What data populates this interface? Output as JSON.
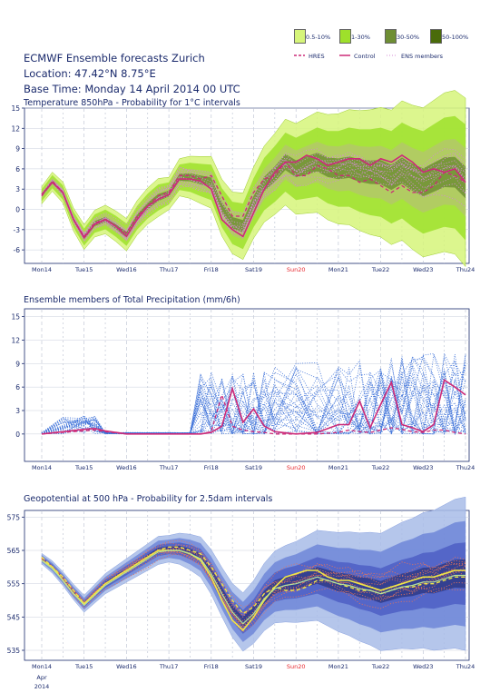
{
  "header": {
    "title": "ECMWF Ensemble forecasts Zurich",
    "location": "Location:  47.42°N 8.75°E",
    "base_time": "Base Time: Monday 14 April 2014 00 UTC"
  },
  "legend": {
    "prob": [
      {
        "label": "0.5-10%",
        "color": "#d6f57a"
      },
      {
        "label": "1-30%",
        "color": "#9ee02b"
      },
      {
        "label": "30-50%",
        "color": "#6e8e34"
      },
      {
        "label": "50-100%",
        "color": "#4a6b0a"
      }
    ],
    "lines": [
      {
        "label": "HRES",
        "color": "#cc2a78"
      },
      {
        "label": "Control",
        "color": "#cc2a78"
      },
      {
        "label": "ENS members",
        "color": "#d58bd6"
      }
    ]
  },
  "days": [
    "Mon14",
    "Tue15",
    "Wed16",
    "Thu17",
    "Fri18",
    "Sat19",
    "Sun20",
    "Mon21",
    "Tue22",
    "Wed23",
    "Thu24"
  ],
  "highlight_day": "Sun20",
  "date_note": [
    "Apr",
    "2014"
  ],
  "colors": {
    "text": "#1a2a6c",
    "highlight": "#e8282e"
  },
  "chart_data": [
    {
      "type": "area",
      "title": "Temperature 850hPa - Probability for 1°C intervals",
      "ylim": [
        -8,
        15
      ],
      "yticks": [
        -6,
        -3,
        0,
        3,
        6,
        9,
        12,
        15
      ],
      "x_unit": "days since Mon14 00 UTC",
      "series": [
        {
          "name": "HRES",
          "x": [
            0,
            0.25,
            0.5,
            0.75,
            1,
            1.25,
            1.5,
            1.75,
            2,
            2.25,
            2.5,
            2.75,
            3,
            3.25,
            3.5,
            3.75,
            4,
            4.25,
            4.5,
            4.75,
            5,
            5.25,
            5.5,
            5.75,
            6,
            6.25,
            6.5,
            6.75,
            7,
            7.25,
            7.5,
            7.75,
            8,
            8.25,
            8.5,
            8.75,
            9,
            9.25,
            9.5,
            9.75,
            10
          ],
          "values": [
            2,
            4.2,
            2.5,
            -1.5,
            -4,
            -2,
            -1.5,
            -2.5,
            -3.5,
            -1,
            0.5,
            2,
            2.5,
            5,
            5,
            4.5,
            5,
            2,
            -1,
            -1,
            2.5,
            4.5,
            5,
            7,
            5,
            5,
            6.5,
            6,
            5,
            5,
            4,
            4.5,
            3.5,
            2.5,
            3.5,
            2.5,
            2.5,
            3.5,
            5.5,
            5,
            4
          ]
        },
        {
          "name": "Control",
          "x": [
            0,
            0.25,
            0.5,
            0.75,
            1,
            1.25,
            1.5,
            1.75,
            2,
            2.25,
            2.5,
            2.75,
            3,
            3.25,
            3.5,
            3.75,
            4,
            4.25,
            4.5,
            4.75,
            5,
            5.25,
            5.5,
            5.75,
            6,
            6.25,
            6.5,
            6.75,
            7,
            7.25,
            7.5,
            7.75,
            8,
            8.25,
            8.5,
            8.75,
            9,
            9.25,
            9.5,
            9.75,
            10
          ],
          "values": [
            2.2,
            4,
            2.5,
            -1.5,
            -4.2,
            -2.2,
            -1.5,
            -2.5,
            -4,
            -1.5,
            0.5,
            1.5,
            2.2,
            4.5,
            4.5,
            4.2,
            3,
            -1.5,
            -3,
            -4,
            -0.5,
            3,
            5.5,
            7,
            7,
            8,
            7.5,
            6.5,
            7,
            7.5,
            7.5,
            6.5,
            7.5,
            7,
            8,
            7,
            5.5,
            6,
            5.5,
            6,
            4
          ]
        }
      ]
    },
    {
      "type": "line",
      "title": "Ensemble members of Total Precipitation (mm/6h)",
      "ylim": [
        -3.5,
        16
      ],
      "yticks": [
        0,
        3,
        6,
        9,
        12,
        15
      ],
      "x_unit": "days since Mon14 00 UTC",
      "series": [
        {
          "name": "HRES",
          "x": [
            0,
            0.5,
            1,
            1.25,
            1.5,
            2,
            3,
            3.5,
            3.75,
            4,
            4.25,
            4.5,
            4.75,
            5,
            5.25,
            5.5,
            6,
            6.5,
            7,
            7.25,
            7.5,
            7.75,
            8,
            8.25,
            8.5,
            8.75,
            9,
            9.25,
            9.5,
            9.75,
            10
          ],
          "values": [
            0,
            0.2,
            0.4,
            0.5,
            0.3,
            0,
            0,
            0,
            0,
            0.3,
            5,
            1,
            0.5,
            0.3,
            0.2,
            0,
            0,
            0,
            0.2,
            0.5,
            0.3,
            0.2,
            0.5,
            0.8,
            0.6,
            0.3,
            0.2,
            0.5,
            0.5,
            0.2,
            0
          ]
        },
        {
          "name": "Control",
          "x": [
            0,
            0.5,
            1,
            1.25,
            1.5,
            2,
            3,
            3.5,
            3.75,
            4,
            4.25,
            4.5,
            4.75,
            5,
            5.25,
            5.5,
            6,
            6.5,
            7,
            7.25,
            7.5,
            7.75,
            8,
            8.25,
            8.5,
            8.75,
            9,
            9.25,
            9.5,
            9.75,
            10
          ],
          "values": [
            0,
            0.3,
            0.6,
            0.7,
            0.4,
            0,
            0,
            0,
            0,
            0.2,
            1,
            5.8,
            1.5,
            3.2,
            1,
            0.3,
            0,
            0.2,
            1.2,
            1.2,
            4.2,
            0.8,
            3.8,
            6.6,
            1.2,
            0.8,
            0.3,
            1.2,
            6.9,
            6,
            5
          ]
        }
      ]
    },
    {
      "type": "area",
      "title": "Geopotential at 500 hPa - Probability for 2.5dam intervals",
      "ylim": [
        532,
        577
      ],
      "yticks": [
        535,
        545,
        555,
        565,
        575
      ],
      "x_unit": "days since Mon14 00 UTC",
      "series": [
        {
          "name": "HRES",
          "x": [
            0,
            0.25,
            0.5,
            0.75,
            1,
            1.25,
            1.5,
            1.75,
            2,
            2.25,
            2.5,
            2.75,
            3,
            3.25,
            3.5,
            3.75,
            4,
            4.25,
            4.5,
            4.75,
            5,
            5.25,
            5.5,
            5.75,
            6,
            6.25,
            6.5,
            6.75,
            7,
            7.25,
            7.5,
            7.75,
            8,
            8.25,
            8.5,
            8.75,
            9,
            9.25,
            9.5,
            9.75,
            10
          ],
          "values": [
            563,
            560,
            557,
            553,
            549,
            552,
            555,
            557,
            559,
            561,
            563,
            565,
            566,
            566,
            565,
            564,
            560,
            555,
            550,
            546,
            548,
            552,
            554,
            553,
            553,
            554,
            556,
            556,
            555,
            554,
            553,
            553,
            552,
            553,
            554,
            554,
            555,
            555,
            556,
            557,
            557
          ]
        },
        {
          "name": "Control",
          "x": [
            0,
            0.25,
            0.5,
            0.75,
            1,
            1.25,
            1.5,
            1.75,
            2,
            2.25,
            2.5,
            2.75,
            3,
            3.25,
            3.5,
            3.75,
            4,
            4.25,
            4.5,
            4.75,
            5,
            5.25,
            5.5,
            5.75,
            6,
            6.25,
            6.5,
            6.75,
            7,
            7.25,
            7.5,
            7.75,
            8,
            8.25,
            8.5,
            8.75,
            9,
            9.25,
            9.5,
            9.75,
            10
          ],
          "values": [
            562,
            560,
            556,
            552,
            549,
            552,
            555,
            557,
            559,
            561,
            563,
            565,
            565,
            565,
            564,
            562,
            557,
            550,
            544,
            541,
            545,
            550,
            554,
            557,
            558,
            559,
            559,
            557,
            556,
            556,
            555,
            554,
            553,
            554,
            555,
            556,
            557,
            557,
            558,
            559,
            559
          ]
        }
      ]
    }
  ]
}
